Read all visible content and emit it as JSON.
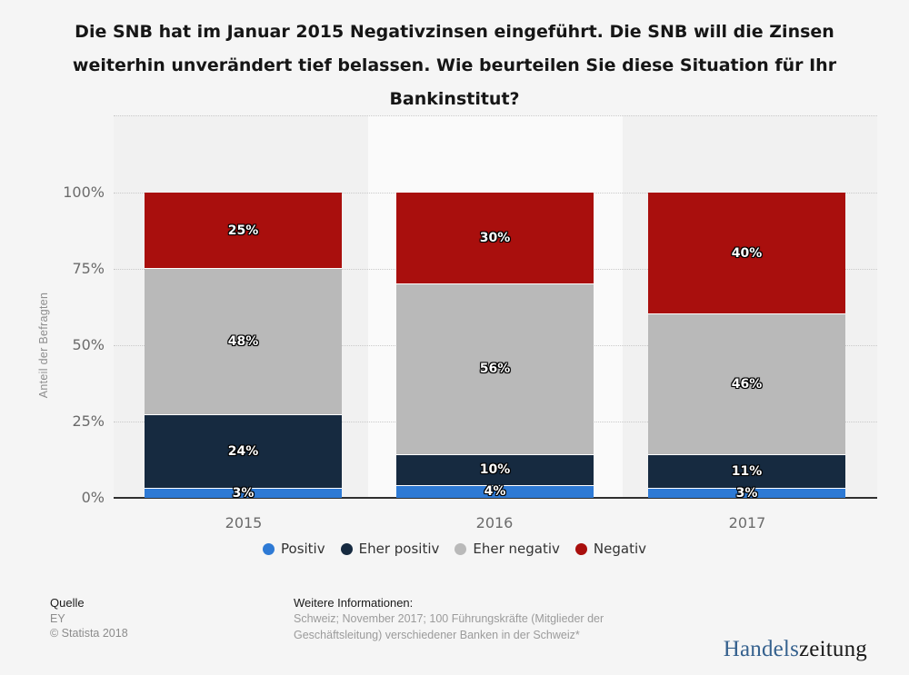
{
  "title_lines": [
    "Die SNB hat im Januar 2015 Negativzinsen eingeführt. Die SNB will die Zinsen",
    "weiterhin unverändert tief belassen. Wie beurteilen Sie diese Situation für Ihr",
    "Bankinstitut?"
  ],
  "chart_data": {
    "type": "bar",
    "stacked": true,
    "categories": [
      "2015",
      "2016",
      "2017"
    ],
    "series": [
      {
        "name": "Positiv",
        "color": "#2e7ad5",
        "values": [
          3,
          4,
          3
        ]
      },
      {
        "name": "Eher positiv",
        "color": "#162a40",
        "values": [
          24,
          10,
          11
        ]
      },
      {
        "name": "Eher negativ",
        "color": "#b9b9b9",
        "values": [
          48,
          56,
          46
        ]
      },
      {
        "name": "Negativ",
        "color": "#a90f0d",
        "values": [
          25,
          30,
          40
        ]
      }
    ],
    "ylabel": "Anteil der Befragten",
    "yticks": [
      "0%",
      "25%",
      "50%",
      "75%",
      "100%"
    ],
    "ylim": [
      0,
      100
    ],
    "value_suffix": "%",
    "grid": "horizontal-dotted",
    "legend_position": "bottom"
  },
  "footer": {
    "source_label": "Quelle",
    "source": "EY",
    "copyright": "© Statista 2018",
    "info_label": "Weitere Informationen:",
    "info_line1": "Schweiz; November 2017; 100 Führungskräfte (Mitglieder der",
    "info_line2": "Geschäftsleitung) verschiedener Banken in der Schweiz*"
  },
  "branding": {
    "logo_part1": "Handels",
    "logo_part2": "zeitung",
    "logo_color1": "#35618e",
    "logo_color2": "#191919"
  }
}
